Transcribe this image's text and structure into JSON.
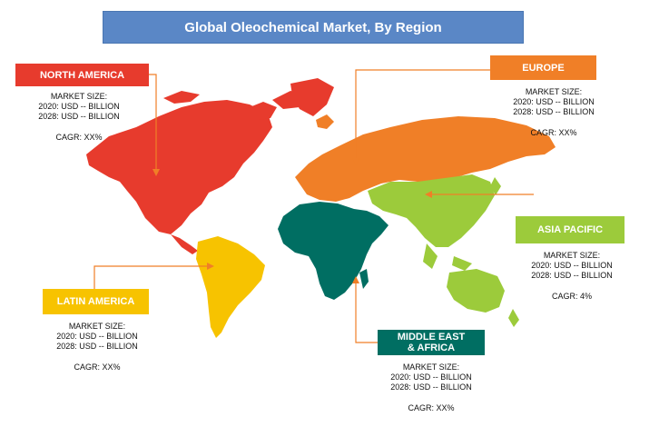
{
  "title": "Global  Oleochemical Market, By Region",
  "colors": {
    "title_bg": "#5a87c6",
    "north_america": "#e73b2d",
    "europe": "#f07f27",
    "asia_pacific": "#9ccb3b",
    "middle_east_africa": "#006e62",
    "latin_america": "#f7c300"
  },
  "regions": {
    "north_america": {
      "name": "NORTH AMERICA",
      "market_size_label": "MARKET SIZE:",
      "y2020": "2020: USD -- BILLION",
      "y2028": "2028: USD -- BILLION",
      "cagr": "CAGR: XX%"
    },
    "europe": {
      "name": "EUROPE",
      "market_size_label": "MARKET SIZE:",
      "y2020": "2020: USD -- BILLION",
      "y2028": "2028: USD -- BILLION",
      "cagr": "CAGR: XX%"
    },
    "asia_pacific": {
      "name": "ASIA PACIFIC",
      "market_size_label": "MARKET SIZE:",
      "y2020": "2020: USD -- BILLION",
      "y2028": "2028: USD -- BILLION",
      "cagr": "CAGR: 4%"
    },
    "latin_america": {
      "name": "LATIN AMERICA",
      "market_size_label": "MARKET SIZE:",
      "y2020": "2020: USD -- BILLION",
      "y2028": "2028: USD -- BILLION",
      "cagr": "CAGR: XX%"
    },
    "middle_east_africa": {
      "name_line1": "MIDDLE EAST",
      "name_line2": "& AFRICA",
      "market_size_label": "MARKET SIZE:",
      "y2020": "2020: USD -- BILLION",
      "y2028": "2028: USD -- BILLION",
      "cagr": "CAGR: XX%"
    }
  }
}
